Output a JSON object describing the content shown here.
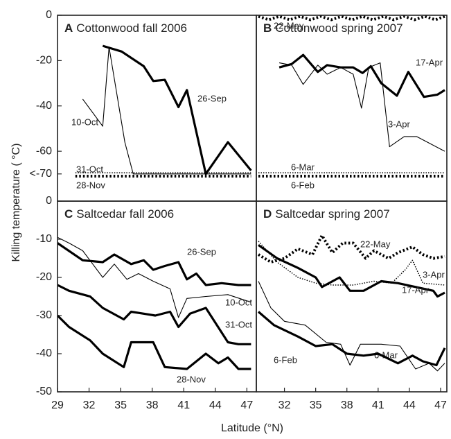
{
  "axis_labels": {
    "y": "Killing temperature ( °C)",
    "x": "Latitude (°N)"
  },
  "chart_data": [
    {
      "type": "line",
      "panel": "A",
      "title": "Cottonwood fall 2006",
      "xlim": [
        29,
        47.9
      ],
      "ylim": [
        -82,
        0
      ],
      "yticks": [
        0,
        -20,
        -40,
        -60,
        {
          "value": -70,
          "label": "<-70"
        }
      ],
      "series": [
        {
          "name": "26-Sep",
          "style": "thick",
          "color": "#000000",
          "x": [
            33.3,
            35.1,
            37.2,
            38.1,
            39.2,
            40.5,
            41.3,
            43.1,
            45.2,
            47.4
          ],
          "values": [
            -13.5,
            -16,
            -22.5,
            -29,
            -28.5,
            -40.5,
            -33,
            -70,
            -56,
            -68.5
          ]
        },
        {
          "name": "10-Oct",
          "style": "thin",
          "color": "#000000",
          "x": [
            31.4,
            33.3,
            33.9,
            35.4,
            36.2,
            47.4
          ],
          "values": [
            -37,
            -49,
            -14,
            -56,
            -70,
            -70
          ]
        },
        {
          "name": "31-Oct",
          "style": "dotted-thin",
          "color": "#000000",
          "x": [
            30.7,
            33,
            35,
            37,
            39,
            41,
            43,
            45,
            47.4
          ],
          "values": [
            -69.5,
            -69.5,
            -69.5,
            -69.5,
            -69.5,
            -69.5,
            -69.5,
            -69.5,
            -69.5
          ]
        },
        {
          "name": "28-Nov",
          "style": "dotted-thick",
          "color": "#000000",
          "x": [
            30.7,
            33,
            35,
            37,
            39,
            41,
            43,
            45,
            47.4
          ],
          "values": [
            -71,
            -71,
            -71,
            -71,
            -71,
            -71,
            -71,
            -71,
            -71
          ]
        }
      ]
    },
    {
      "type": "line",
      "panel": "B",
      "title": "Cottonwood spring 2007",
      "xlim": [
        29.3,
        47.6
      ],
      "ylim": [
        -82,
        0
      ],
      "series": [
        {
          "name": "22-May",
          "style": "dotted-thick",
          "color": "#000000",
          "x": [
            29.5,
            30.5,
            31.5,
            32.5,
            33.5,
            34.5,
            35.5,
            36.5,
            37.5,
            38.5,
            39.5,
            40.5,
            41.5,
            42.5,
            43.5,
            44.5,
            45.5,
            46.5,
            47.4
          ],
          "values": [
            -0.5,
            -2,
            -0.5,
            -2,
            -0.5,
            -2,
            -0.5,
            -2,
            -0.5,
            -2,
            -0.5,
            -2,
            -0.5,
            -2,
            -0.5,
            -2,
            -0.5,
            -2,
            -0.5
          ]
        },
        {
          "name": "17-Apr",
          "style": "thick",
          "color": "#000000",
          "x": [
            31.5,
            32.7,
            33.8,
            35.2,
            36.1,
            37.4,
            38.6,
            39.5,
            40.3,
            41.3,
            42.8,
            43.9,
            45.4,
            46.7,
            47.4
          ],
          "values": [
            -23,
            -21.5,
            -17.5,
            -25,
            -22,
            -23,
            -23,
            -25.5,
            -22.5,
            -30,
            -35.5,
            -25,
            -36,
            -35,
            -33
          ]
        },
        {
          "name": "3-Apr",
          "style": "thin",
          "color": "#000000",
          "x": [
            31.5,
            32.7,
            33.8,
            35.2,
            36.1,
            37.4,
            38.6,
            39.4,
            40.1,
            41.2,
            42.1,
            43.5,
            44.7,
            47.4
          ],
          "values": [
            -21,
            -22,
            -30.5,
            -22,
            -26,
            -23,
            -26,
            -41,
            -23,
            -21,
            -58,
            -53.5,
            -53.5,
            -60
          ]
        },
        {
          "name": "6-Mar",
          "style": "dotted-thin",
          "color": "#000000",
          "x": [
            29.5,
            32,
            35,
            38,
            41,
            44,
            47.4
          ],
          "values": [
            -69.5,
            -69.5,
            -69.5,
            -69.5,
            -69.5,
            -69.5,
            -69.5
          ]
        },
        {
          "name": "6-Feb",
          "style": "dotted-thick",
          "color": "#000000",
          "x": [
            29.5,
            32,
            35,
            38,
            41,
            44,
            47.4
          ],
          "values": [
            -71,
            -71,
            -71,
            -71,
            -71,
            -71,
            -71
          ]
        }
      ]
    },
    {
      "type": "line",
      "panel": "C",
      "title": "Saltcedar fall 2006",
      "xlim": [
        29,
        47.9
      ],
      "ylim": [
        -50,
        0
      ],
      "xticks": [
        29,
        32,
        35,
        38,
        41,
        44,
        47
      ],
      "yticks": [
        0,
        -10,
        -20,
        -30,
        -40,
        -50
      ],
      "series": [
        {
          "name": "26-Sep",
          "style": "thick",
          "color": "#000000",
          "x": [
            29,
            31.4,
            33.3,
            34.4,
            36.0,
            37.2,
            38.1,
            39.2,
            40.5,
            41.3,
            42.2,
            43.1,
            44.6,
            46.2,
            47.4
          ],
          "values": [
            -11,
            -15.5,
            -16,
            -14,
            -16.5,
            -15.5,
            -18,
            -17,
            -16,
            -20.5,
            -19,
            -22,
            -21.5,
            -22,
            -22
          ]
        },
        {
          "name": "10-Oct",
          "style": "thin",
          "color": "#000000",
          "x": [
            29,
            30.1,
            31.4,
            33.3,
            34.4,
            35.6,
            36.7,
            38.1,
            39.7,
            40.5,
            41.3,
            43.1,
            45.2,
            47.4
          ],
          "values": [
            -9.5,
            -11,
            -13,
            -20,
            -16.5,
            -20.5,
            -19,
            -21,
            -23,
            -30.5,
            -25.5,
            -25,
            -24.5,
            -26.5
          ]
        },
        {
          "name": "31-Oct",
          "style": "thick",
          "color": "#000000",
          "x": [
            29,
            30.1,
            32.1,
            33.3,
            35.3,
            36.0,
            37.2,
            38.3,
            39.7,
            40.5,
            41.6,
            43.1,
            45.2,
            46.2,
            47.4
          ],
          "values": [
            -22,
            -23.5,
            -25,
            -28,
            -31,
            -29,
            -29.5,
            -30,
            -29,
            -33,
            -29.5,
            -28,
            -37,
            -37.5,
            -37.5
          ]
        },
        {
          "name": "28-Nov",
          "style": "thick",
          "color": "#000000",
          "x": [
            29,
            30.1,
            32.1,
            33.3,
            35.3,
            36.0,
            38.1,
            39.2,
            41.3,
            43.1,
            44.3,
            45.2,
            46.2,
            47.4
          ],
          "values": [
            -30,
            -33,
            -36.5,
            -40,
            -43.5,
            -37,
            -37,
            -43.5,
            -44,
            -40,
            -42.5,
            -41,
            -44,
            -44
          ]
        }
      ]
    },
    {
      "type": "line",
      "panel": "D",
      "title": "Saltcedar spring 2007",
      "xlim": [
        29.3,
        47.6
      ],
      "ylim": [
        -50,
        0
      ],
      "xticks": [
        32,
        35,
        38,
        41,
        44,
        47
      ],
      "series": [
        {
          "name": "22-May",
          "style": "dotted-thick",
          "color": "#000000",
          "x": [
            29.5,
            30.7,
            32,
            33.3,
            34.7,
            35.6,
            36.6,
            37.6,
            38.6,
            39.8,
            40.6,
            42.0,
            42.9,
            44.3,
            45.3,
            46.3,
            47.4
          ],
          "values": [
            -14,
            -16,
            -15,
            -12.5,
            -14,
            -9,
            -13.5,
            -11,
            -11,
            -15,
            -13,
            -15,
            -13.5,
            -12,
            -14,
            -15,
            -14.5
          ]
        },
        {
          "name": "3-Apr",
          "style": "dotted-thin",
          "color": "#000000",
          "x": [
            29.5,
            31.3,
            33.3,
            35.0,
            36.6,
            38.6,
            40.6,
            42.3,
            43.6,
            44.3,
            45.3,
            47.4
          ],
          "values": [
            -10.5,
            -16,
            -20,
            -21.5,
            -22,
            -22,
            -21,
            -21.5,
            -18,
            -15.5,
            -21.5,
            -22
          ]
        },
        {
          "name": "17-Apr",
          "style": "thick",
          "color": "#000000",
          "x": [
            29.5,
            31.3,
            33.3,
            35.0,
            35.6,
            37.3,
            38.3,
            39.6,
            41.3,
            42.9,
            44.6,
            46.3,
            46.7,
            47.4
          ],
          "values": [
            -11.5,
            -15,
            -17.5,
            -20,
            -22.5,
            -20,
            -23.5,
            -23.5,
            -21,
            -21.5,
            -22.5,
            -23.5,
            -25,
            -24
          ]
        },
        {
          "name": "6-Mar",
          "style": "thin",
          "color": "#000000",
          "x": [
            29.5,
            30.7,
            32,
            34.0,
            36.0,
            37.4,
            38.3,
            39.3,
            41.3,
            43.1,
            44.6,
            45.9,
            46.7,
            47.4
          ],
          "values": [
            -21,
            -28,
            -31.5,
            -32.5,
            -37,
            -37.5,
            -43,
            -37.5,
            -37.5,
            -38,
            -44,
            -42.5,
            -44.5,
            -42.5
          ]
        },
        {
          "name": "6-Feb",
          "style": "thick",
          "color": "#000000",
          "x": [
            29.5,
            31.0,
            33.3,
            35.0,
            36.6,
            38.0,
            39.6,
            41.0,
            42.9,
            44.3,
            45.3,
            46.6,
            47.4
          ],
          "values": [
            -29,
            -32.5,
            -35.5,
            -38,
            -37.5,
            -40,
            -40.5,
            -40,
            -42.5,
            -40.5,
            -42,
            -43,
            -38.5
          ]
        }
      ]
    }
  ]
}
